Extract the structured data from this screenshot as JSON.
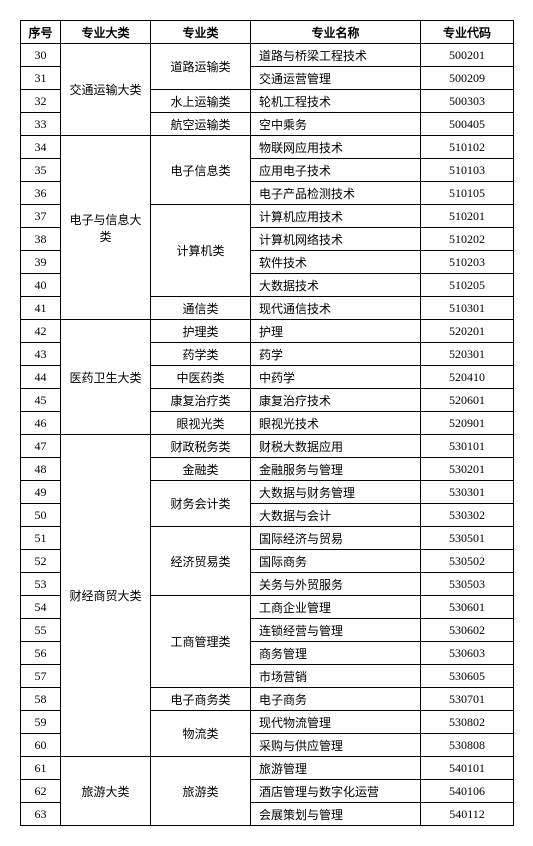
{
  "headers": {
    "seq": "序号",
    "major_cat": "专业大类",
    "sub_cat": "专业类",
    "name": "专业名称",
    "code": "专业代码"
  },
  "rows": [
    {
      "seq": 30,
      "major_cat": "交通运输大类",
      "sub_cat": "道路运输类",
      "name": "道路与桥梁工程技术",
      "code": "500201"
    },
    {
      "seq": 31,
      "name": "交通运营管理",
      "code": "500209"
    },
    {
      "seq": 32,
      "sub_cat": "水上运输类",
      "name": "轮机工程技术",
      "code": "500303"
    },
    {
      "seq": 33,
      "sub_cat": "航空运输类",
      "name": "空中乘务",
      "code": "500405"
    },
    {
      "seq": 34,
      "major_cat": "电子与信息大类",
      "sub_cat": "电子信息类",
      "name": "物联网应用技术",
      "code": "510102"
    },
    {
      "seq": 35,
      "name": "应用电子技术",
      "code": "510103"
    },
    {
      "seq": 36,
      "name": "电子产品检测技术",
      "code": "510105"
    },
    {
      "seq": 37,
      "sub_cat": "计算机类",
      "name": "计算机应用技术",
      "code": "510201"
    },
    {
      "seq": 38,
      "name": "计算机网络技术",
      "code": "510202"
    },
    {
      "seq": 39,
      "name": "软件技术",
      "code": "510203"
    },
    {
      "seq": 40,
      "name": "大数据技术",
      "code": "510205"
    },
    {
      "seq": 41,
      "sub_cat": "通信类",
      "name": "现代通信技术",
      "code": "510301"
    },
    {
      "seq": 42,
      "major_cat": "医药卫生大类",
      "sub_cat": "护理类",
      "name": "护理",
      "code": "520201"
    },
    {
      "seq": 43,
      "sub_cat": "药学类",
      "name": "药学",
      "code": "520301"
    },
    {
      "seq": 44,
      "sub_cat": "中医药类",
      "name": "中药学",
      "code": "520410"
    },
    {
      "seq": 45,
      "sub_cat": "康复治疗类",
      "name": "康复治疗技术",
      "code": "520601"
    },
    {
      "seq": 46,
      "sub_cat": "眼视光类",
      "name": "眼视光技术",
      "code": "520901"
    },
    {
      "seq": 47,
      "major_cat": "财经商贸大类",
      "sub_cat": "财政税务类",
      "name": "财税大数据应用",
      "code": "530101"
    },
    {
      "seq": 48,
      "sub_cat": "金融类",
      "name": "金融服务与管理",
      "code": "530201"
    },
    {
      "seq": 49,
      "sub_cat": "财务会计类",
      "name": "大数据与财务管理",
      "code": "530301"
    },
    {
      "seq": 50,
      "name": "大数据与会计",
      "code": "530302"
    },
    {
      "seq": 51,
      "sub_cat": "经济贸易类",
      "name": "国际经济与贸易",
      "code": "530501"
    },
    {
      "seq": 52,
      "name": "国际商务",
      "code": "530502"
    },
    {
      "seq": 53,
      "name": "关务与外贸服务",
      "code": "530503"
    },
    {
      "seq": 54,
      "sub_cat": "工商管理类",
      "name": "工商企业管理",
      "code": "530601"
    },
    {
      "seq": 55,
      "name": "连锁经营与管理",
      "code": "530602"
    },
    {
      "seq": 56,
      "name": "商务管理",
      "code": "530603"
    },
    {
      "seq": 57,
      "name": "市场营销",
      "code": "530605"
    },
    {
      "seq": 58,
      "sub_cat": "电子商务类",
      "name": "电子商务",
      "code": "530701"
    },
    {
      "seq": 59,
      "sub_cat": "物流类",
      "name": "现代物流管理",
      "code": "530802"
    },
    {
      "seq": 60,
      "name": "采购与供应管理",
      "code": "530808"
    },
    {
      "seq": 61,
      "major_cat": "旅游大类",
      "sub_cat": "旅游类",
      "name": "旅游管理",
      "code": "540101"
    },
    {
      "seq": 62,
      "name": "酒店管理与数字化运营",
      "code": "540106"
    },
    {
      "seq": 63,
      "name": "会展策划与管理",
      "code": "540112"
    }
  ],
  "spans": {
    "major": [
      {
        "start": 0,
        "span": 4
      },
      {
        "start": 4,
        "span": 8
      },
      {
        "start": 12,
        "span": 5
      },
      {
        "start": 17,
        "span": 14
      },
      {
        "start": 31,
        "span": 3
      }
    ],
    "sub": [
      {
        "start": 0,
        "span": 2
      },
      {
        "start": 2,
        "span": 1
      },
      {
        "start": 3,
        "span": 1
      },
      {
        "start": 4,
        "span": 3
      },
      {
        "start": 7,
        "span": 4
      },
      {
        "start": 11,
        "span": 1
      },
      {
        "start": 12,
        "span": 1
      },
      {
        "start": 13,
        "span": 1
      },
      {
        "start": 14,
        "span": 1
      },
      {
        "start": 15,
        "span": 1
      },
      {
        "start": 16,
        "span": 1
      },
      {
        "start": 17,
        "span": 1
      },
      {
        "start": 18,
        "span": 1
      },
      {
        "start": 19,
        "span": 2
      },
      {
        "start": 21,
        "span": 3
      },
      {
        "start": 24,
        "span": 4
      },
      {
        "start": 28,
        "span": 1
      },
      {
        "start": 29,
        "span": 2
      },
      {
        "start": 31,
        "span": 3
      }
    ]
  }
}
